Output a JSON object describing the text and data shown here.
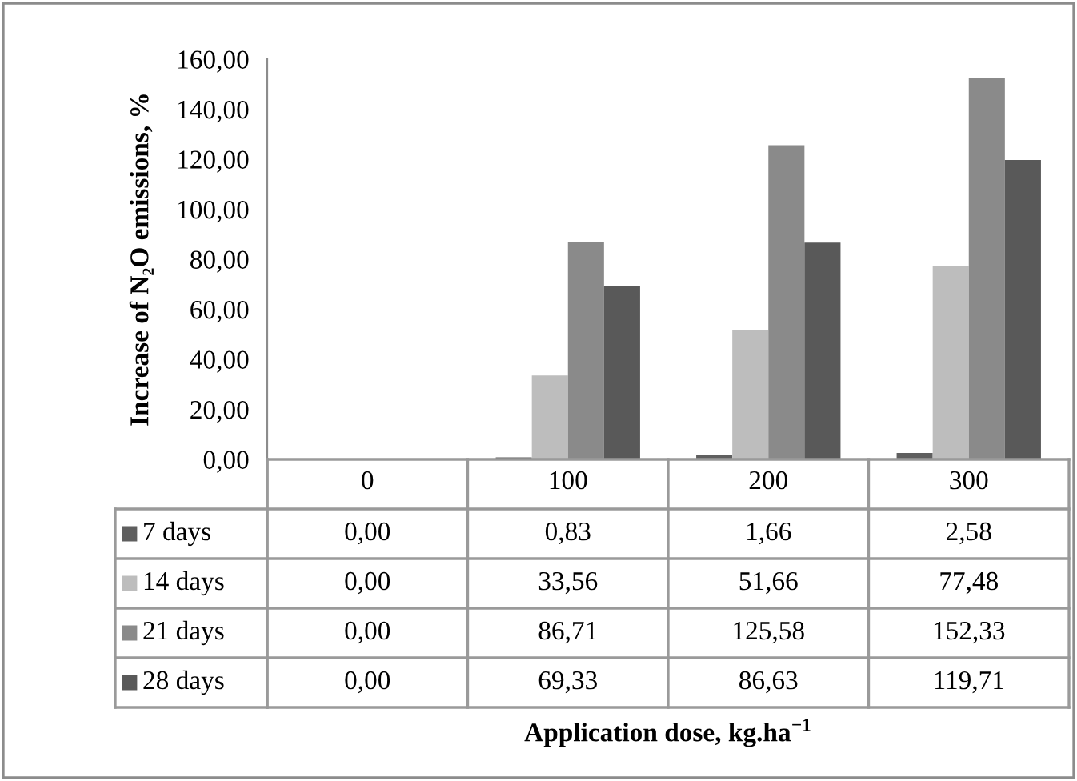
{
  "chart_data": {
    "type": "bar",
    "ylabel": "Increase of N₂O emissions, %",
    "annotations": [
      "Application dose, kg.ha$^{−1}$"
    ],
    "categories": [
      "0",
      "100",
      "200",
      "300"
    ],
    "series": [
      {
        "name": "7 days",
        "color": "#5f5f5f",
        "values": [
          0.0,
          0.83,
          1.66,
          2.58
        ],
        "value_labels": [
          "0,00",
          "0,83",
          "1,66",
          "2,58"
        ]
      },
      {
        "name": "14 days",
        "color": "#bdbdbd",
        "values": [
          0.0,
          33.56,
          51.66,
          77.48
        ],
        "value_labels": [
          "0,00",
          "33,56",
          "51,66",
          "77,48"
        ]
      },
      {
        "name": "21 days",
        "color": "#8a8a8a",
        "values": [
          0.0,
          86.71,
          125.58,
          152.33
        ],
        "value_labels": [
          "0,00",
          "86,71",
          "125,58",
          "152,33"
        ]
      },
      {
        "name": "28 days",
        "color": "#595959",
        "values": [
          0.0,
          69.33,
          86.63,
          119.71
        ],
        "value_labels": [
          "0,00",
          "69,33",
          "86,63",
          "119,71"
        ]
      }
    ],
    "ylim": [
      0,
      160
    ],
    "yticks": [
      {
        "value": 0,
        "label": "0,00"
      },
      {
        "value": 20,
        "label": "20,00"
      },
      {
        "value": 40,
        "label": "40,00"
      },
      {
        "value": 60,
        "label": "60,00"
      },
      {
        "value": 80,
        "label": "80,00"
      },
      {
        "value": 100,
        "label": "100,00"
      },
      {
        "value": 120,
        "label": "120,00"
      },
      {
        "value": 140,
        "label": "140,00"
      },
      {
        "value": 160,
        "label": "160,00"
      }
    ],
    "grid": false,
    "legend": "bottom"
  }
}
